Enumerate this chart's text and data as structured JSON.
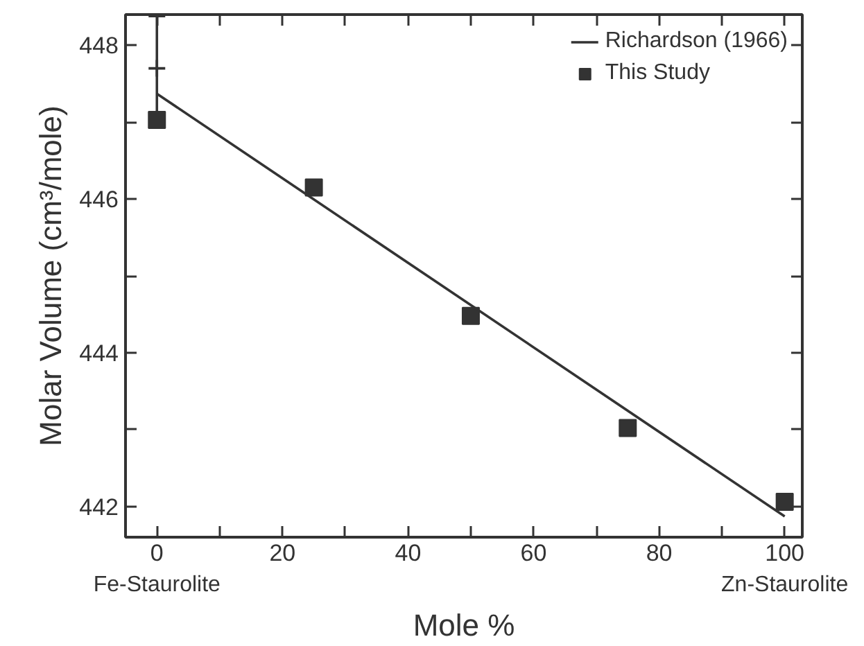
{
  "chart_data": {
    "type": "scatter",
    "xlabel": "Mole %",
    "ylabel": "Molar Volume (cm³/mole)",
    "xlim": [
      -5,
      102.8
    ],
    "ylim": [
      441.6,
      448.4
    ],
    "xticks": [
      0,
      {
        "value": 10,
        "label": null
      },
      20,
      {
        "value": 30,
        "label": null
      },
      40,
      {
        "value": 50,
        "label": null
      },
      60,
      {
        "value": 70,
        "label": null
      },
      80,
      {
        "value": 90,
        "label": null
      },
      100
    ],
    "yticks": [
      442,
      {
        "value": 443,
        "label": null
      },
      444,
      {
        "value": 445,
        "label": null
      },
      446,
      {
        "value": 447,
        "label": null
      },
      448
    ],
    "grid": false,
    "legend": "top right",
    "annotations": [
      "Fe-Staurolite",
      "Zn-Staurolite"
    ],
    "series": [
      {
        "name": "Richardson (1966)",
        "type": "scatter",
        "marker": "cross",
        "color": "#333333",
        "x": [
          0
        ],
        "values": [
          447.7
        ],
        "errors": [
          0.68
        ]
      },
      {
        "name": "This Study",
        "marker": "square",
        "color": "#333333",
        "x": [
          0,
          25,
          50,
          75,
          100
        ],
        "values": [
          447.03,
          446.15,
          444.48,
          443.02,
          442.06
        ]
      },
      {
        "type": "line",
        "color": "#333333",
        "x": [
          0,
          100
        ],
        "values": [
          447.37,
          441.87
        ]
      }
    ]
  }
}
